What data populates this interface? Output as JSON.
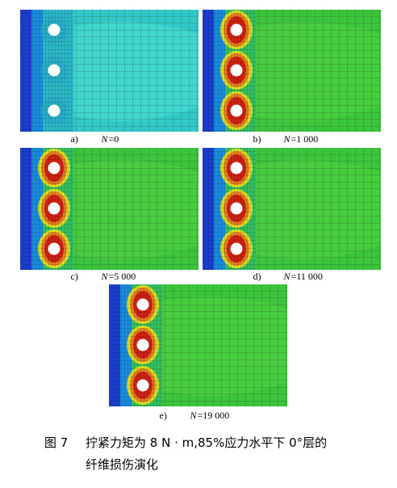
{
  "panels": [
    {
      "label": "a)",
      "variable": "N",
      "value": "=0"
    },
    {
      "label": "b)",
      "variable": "N",
      "value": "=1 000"
    },
    {
      "label": "c)",
      "variable": "N",
      "value": "=5 000"
    },
    {
      "label": "d)",
      "variable": "N",
      "value": "=11 000"
    },
    {
      "label": "e)",
      "variable": "N",
      "value": "=19 000"
    }
  ],
  "caption": {
    "number": "图 7",
    "text_line1": "拧紧力矩为 8 N · m,85%应力水平下 0°层的",
    "text_line2": "纤维损伤演化"
  }
}
